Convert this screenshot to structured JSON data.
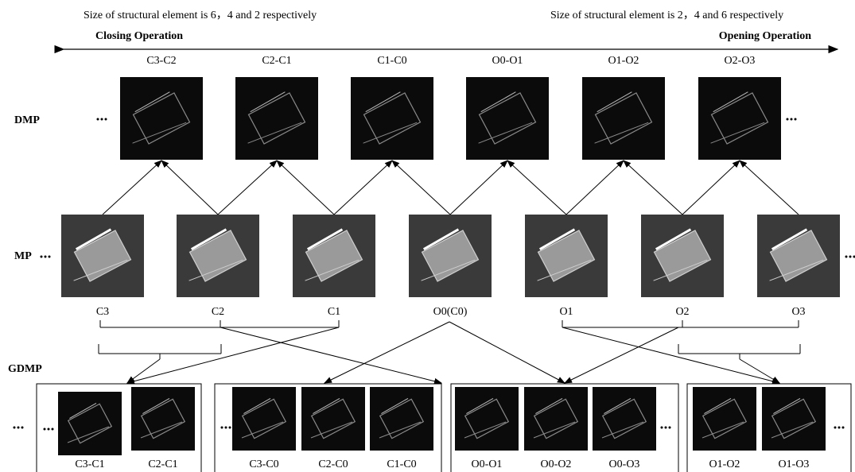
{
  "header": {
    "closing_note": "Size of structural element is 6，4 and 2 respectively",
    "opening_note": "Size of structural element is 2，4 and 6 respectively",
    "closing_label": "Closing Operation",
    "opening_label": "Opening Operation"
  },
  "rows": {
    "dmp": "DMP",
    "mp": "MP",
    "gdmp": "GDMP"
  },
  "dmp": [
    "C3-C2",
    "C2-C1",
    "C1-C0",
    "O0-O1",
    "O1-O2",
    "O2-O3"
  ],
  "mp": [
    "C3",
    "C2",
    "C1",
    "O0(C0)",
    "O1",
    "O2",
    "O3"
  ],
  "gdmp": [
    [
      "C3-C1",
      "C2-C1"
    ],
    [
      "C3-C0",
      "C2-C0",
      "C1-C0"
    ],
    [
      "O0-O1",
      "O0-O2",
      "O0-O3"
    ],
    [
      "O1-O2",
      "O1-O3"
    ]
  ]
}
